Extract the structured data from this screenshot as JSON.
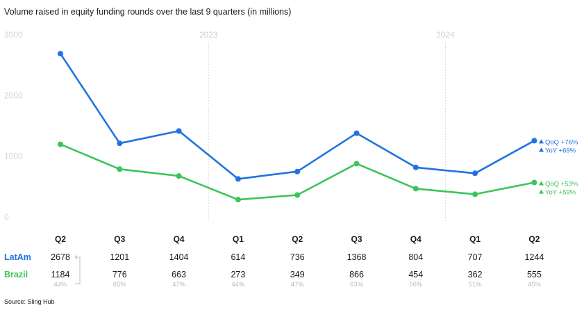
{
  "title": "Volume raised in equity funding rounds over the last 9 quarters (in millions)",
  "source": "Source: Sling Hub",
  "colors": {
    "latam": "#1f73e0",
    "brazil": "#3cc45a",
    "grid": "#cccccc",
    "muted": "#bdbdbd"
  },
  "chart_data": {
    "type": "line",
    "title": "Volume raised in equity funding rounds over the last 9 quarters (in millions)",
    "categories": [
      "Q2",
      "Q3",
      "Q4",
      "Q1",
      "Q2",
      "Q3",
      "Q4",
      "Q1",
      "Q2"
    ],
    "year_markers": [
      {
        "label": "2023",
        "after_index": 2
      },
      {
        "label": "2024",
        "after_index": 6
      }
    ],
    "yticks": [
      0,
      1000,
      2000,
      3000
    ],
    "ylim": [
      0,
      3000
    ],
    "grid": false,
    "legend": "table rows below chart",
    "series": [
      {
        "name": "LatAm",
        "color": "#1f73e0",
        "values": [
          2678,
          1201,
          1404,
          614,
          736,
          1368,
          804,
          707,
          1244
        ]
      },
      {
        "name": "Brazil",
        "color": "#3cc45a",
        "values": [
          1184,
          776,
          663,
          273,
          349,
          866,
          454,
          362,
          555
        ]
      }
    ],
    "brazil_share": [
      "44%",
      "65%",
      "47%",
      "44%",
      "47%",
      "63%",
      "56%",
      "51%",
      "45%"
    ],
    "annotations": [
      {
        "series": "LatAm",
        "lines": [
          "QoQ +76%",
          "YoY +69%"
        ]
      },
      {
        "series": "Brazil",
        "lines": [
          "QoQ +53%",
          "YoY +59%"
        ]
      }
    ]
  }
}
